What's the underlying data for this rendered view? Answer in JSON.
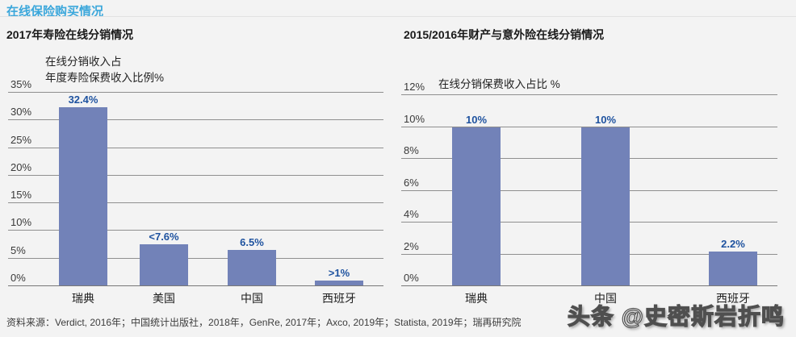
{
  "page": {
    "title": "在线保险购买情况",
    "source": "资料来源：Verdict, 2016年；中国统计出版社，2018年，GenRe, 2017年；Axco, 2019年；Statista, 2019年；瑞再研究院",
    "watermark": "头条 @史密斯岩折鸣"
  },
  "colors": {
    "accent_title": "#3ba7db",
    "bar_fill": "#7282b8",
    "value_label": "#1e529f",
    "gridline": "#8f8f8f",
    "background": "#f3f3f3"
  },
  "chart_data": [
    {
      "type": "bar",
      "title": "2017年寿险在线分销情况",
      "ylabel_lines": [
        "在线分销收入占",
        "年度寿险保费收入比例%"
      ],
      "ylim": [
        0,
        35
      ],
      "grid": true,
      "legend": false,
      "yticks": [
        {
          "value": 35,
          "label": "35%"
        },
        {
          "value": 30,
          "label": "30%"
        },
        {
          "value": 25,
          "label": "25%"
        },
        {
          "value": 20,
          "label": "20%"
        },
        {
          "value": 15,
          "label": "15%"
        },
        {
          "value": 10,
          "label": "10%"
        },
        {
          "value": 5,
          "label": "5%"
        },
        {
          "value": 0,
          "label": "0%"
        }
      ],
      "categories": [
        "瑞典",
        "美国",
        "中国",
        "西班牙"
      ],
      "values": [
        32.4,
        7.6,
        6.5,
        1
      ],
      "value_labels": [
        "32.4%",
        "<7.6%",
        "6.5%",
        ">1%"
      ]
    },
    {
      "type": "bar",
      "title": "2015/2016年财产与意外险在线分销情况",
      "ylabel_lines": [
        "在线分销保费收入占比 %"
      ],
      "ylim": [
        0,
        12
      ],
      "grid": true,
      "legend": false,
      "yticks": [
        {
          "value": 12,
          "label": "12%"
        },
        {
          "value": 10,
          "label": "10%"
        },
        {
          "value": 8,
          "label": "8%"
        },
        {
          "value": 6,
          "label": "6%"
        },
        {
          "value": 4,
          "label": "4%"
        },
        {
          "value": 2,
          "label": "2%"
        },
        {
          "value": 0,
          "label": "0%"
        }
      ],
      "categories": [
        "瑞典",
        "中国",
        "西班牙"
      ],
      "values": [
        10,
        10,
        2.2
      ],
      "value_labels": [
        "10%",
        "10%",
        "2.2%"
      ]
    }
  ]
}
